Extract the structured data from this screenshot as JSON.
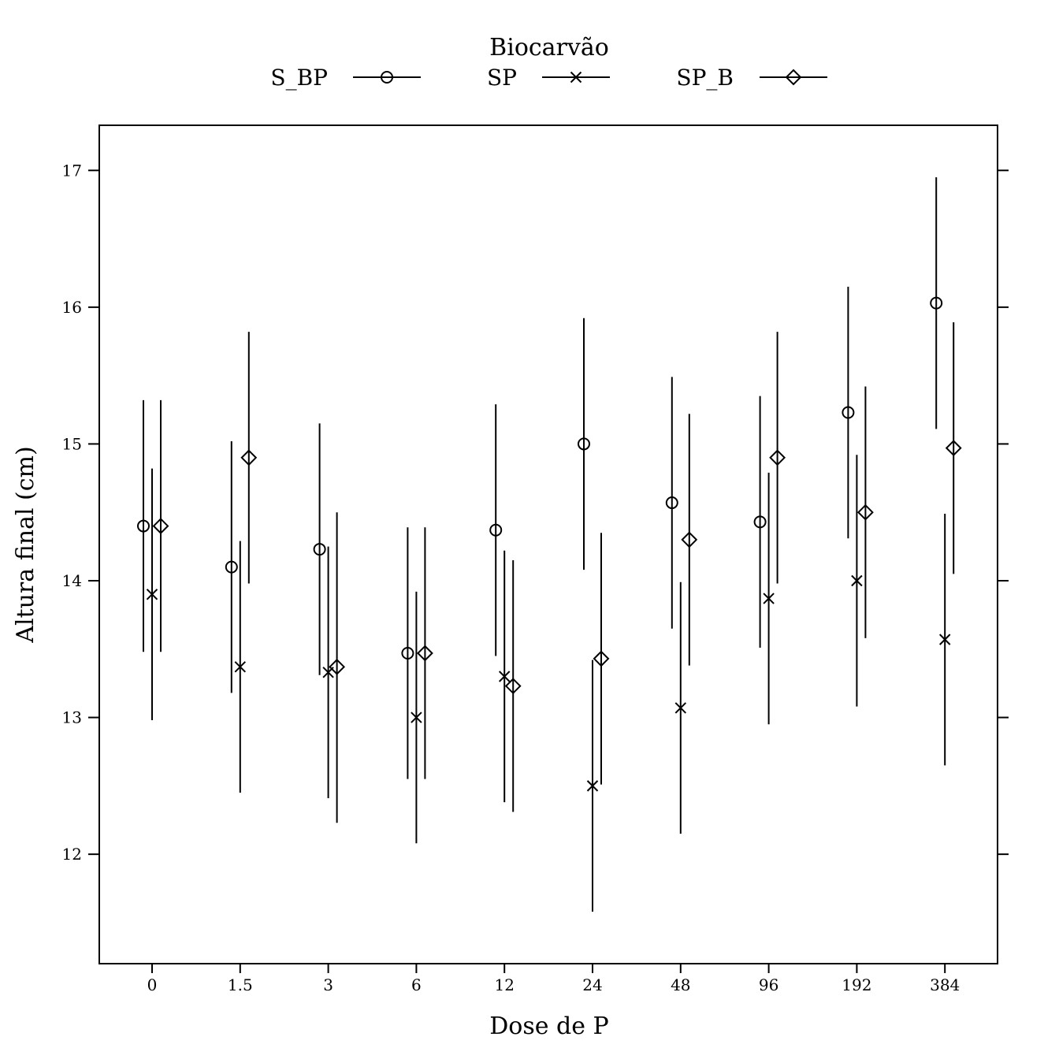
{
  "chart_data": {
    "type": "scatter",
    "subtype": "point-with-error-bars",
    "title": "",
    "xlabel": "Dose de P",
    "ylabel": "Altura final (cm)",
    "ylim": [
      11.2,
      17.33
    ],
    "yticks": [
      12,
      13,
      14,
      15,
      16,
      17
    ],
    "categories": [
      "0",
      "1.5",
      "3",
      "6",
      "12",
      "24",
      "48",
      "96",
      "192",
      "384"
    ],
    "legend": {
      "title": "Biocarvão",
      "placement": "top"
    },
    "grid": false,
    "series": [
      {
        "name": "S_BP",
        "marker": "circle",
        "values": [
          14.4,
          14.1,
          14.23,
          13.47,
          14.37,
          15.0,
          14.57,
          14.43,
          15.23,
          16.03
        ],
        "lower": [
          13.48,
          13.18,
          13.31,
          12.55,
          13.45,
          14.08,
          13.65,
          13.51,
          14.31,
          15.11
        ],
        "upper": [
          15.32,
          15.02,
          15.15,
          14.39,
          15.29,
          15.92,
          15.49,
          15.35,
          16.15,
          16.95
        ]
      },
      {
        "name": "SP",
        "marker": "cross",
        "values": [
          13.9,
          13.37,
          13.33,
          13.0,
          13.3,
          12.5,
          13.07,
          13.87,
          14.0,
          13.57
        ],
        "lower": [
          12.98,
          12.45,
          12.41,
          12.08,
          12.38,
          11.58,
          12.15,
          12.95,
          13.08,
          12.65
        ],
        "upper": [
          14.82,
          14.29,
          14.25,
          13.92,
          14.22,
          13.42,
          13.99,
          14.79,
          14.92,
          14.49
        ]
      },
      {
        "name": "SP_B",
        "marker": "diamond",
        "values": [
          14.4,
          14.9,
          13.37,
          13.47,
          13.23,
          13.43,
          14.3,
          14.9,
          14.5,
          14.97
        ],
        "lower": [
          13.48,
          13.98,
          12.23,
          12.55,
          12.31,
          12.51,
          13.38,
          13.98,
          13.58,
          14.05
        ],
        "upper": [
          15.32,
          15.82,
          14.5,
          14.39,
          14.15,
          14.35,
          15.22,
          15.82,
          15.42,
          15.89
        ]
      }
    ]
  }
}
